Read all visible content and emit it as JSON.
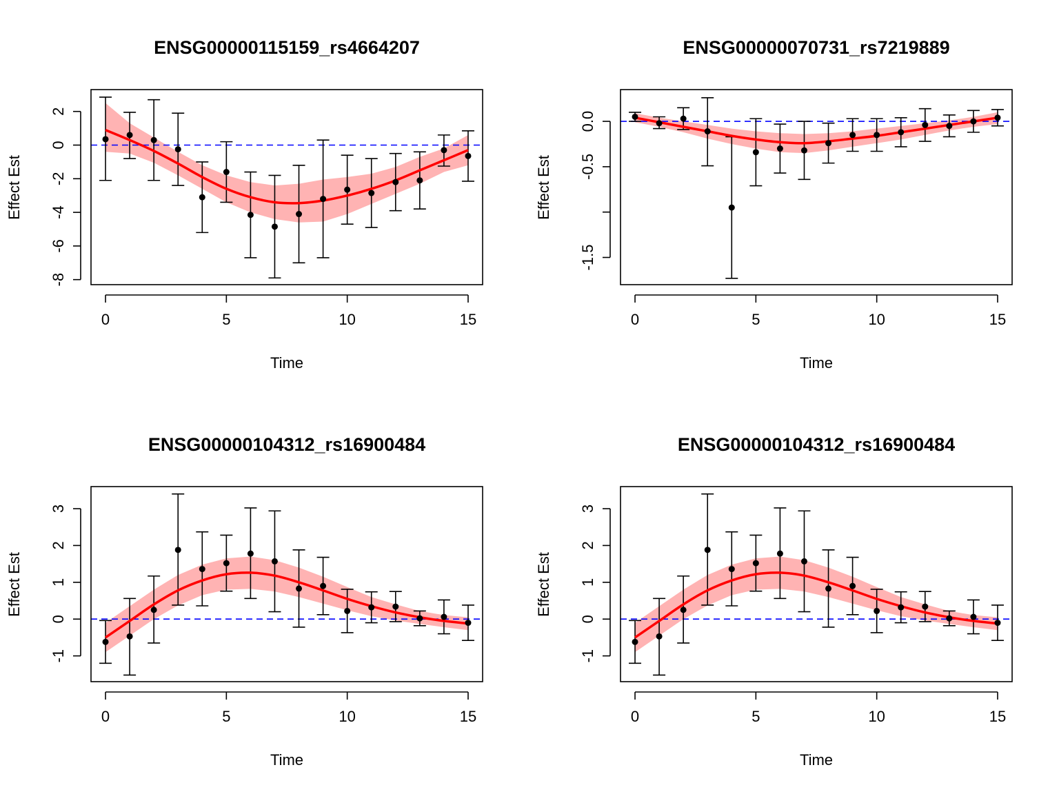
{
  "chart_data": [
    {
      "type": "scatter",
      "title": "ENSG00000115159_rs4664207",
      "xlabel": "Time",
      "ylabel": "Effect Est",
      "xlim": [
        -0.6,
        15.6
      ],
      "ylim": [
        -8.3,
        3.3
      ],
      "xticks": [
        0,
        5,
        10,
        15
      ],
      "yticks": [
        -8,
        -6,
        -4,
        -2,
        0,
        2
      ],
      "ytick_labels": [
        "-8",
        "-6",
        "-4",
        "-2",
        "0",
        "2"
      ],
      "reference_line": 0,
      "points": {
        "x": [
          0,
          1,
          2,
          3,
          4,
          5,
          6,
          7,
          8,
          9,
          10,
          11,
          12,
          13,
          14,
          15
        ],
        "y": [
          0.35,
          0.6,
          0.3,
          -0.25,
          -3.1,
          -1.6,
          -4.15,
          -4.85,
          -4.1,
          -3.2,
          -2.65,
          -2.85,
          -2.2,
          -2.1,
          -0.3,
          -0.65
        ],
        "lower": [
          -2.1,
          -0.8,
          -2.1,
          -2.4,
          -5.2,
          -3.4,
          -6.7,
          -7.9,
          -7.0,
          -6.7,
          -4.7,
          -4.9,
          -3.9,
          -3.8,
          -1.25,
          -2.15
        ],
        "upper": [
          2.85,
          1.95,
          2.7,
          1.9,
          -1.0,
          0.2,
          -1.6,
          -1.8,
          -1.2,
          0.3,
          -0.6,
          -0.8,
          -0.5,
          -0.4,
          0.6,
          0.85
        ]
      },
      "fit": {
        "x": [
          0,
          1,
          2,
          3,
          4,
          5,
          6,
          7,
          8,
          9,
          10,
          11,
          12,
          13,
          14,
          15
        ],
        "y": [
          0.9,
          0.3,
          -0.35,
          -1.1,
          -1.9,
          -2.6,
          -3.1,
          -3.4,
          -3.45,
          -3.3,
          -3.0,
          -2.6,
          -2.1,
          -1.5,
          -0.9,
          -0.3
        ],
        "lower": [
          -0.4,
          -0.5,
          -1.05,
          -1.8,
          -2.6,
          -3.4,
          -4.0,
          -4.4,
          -4.6,
          -4.55,
          -4.1,
          -3.5,
          -2.9,
          -2.3,
          -1.6,
          -1.2
        ],
        "upper": [
          2.5,
          1.3,
          0.45,
          -0.4,
          -1.2,
          -1.8,
          -2.2,
          -2.4,
          -2.3,
          -2.05,
          -1.9,
          -1.7,
          -1.3,
          -0.7,
          -0.2,
          0.6
        ]
      }
    },
    {
      "type": "scatter",
      "title": "ENSG00000070731_rs7219889",
      "xlabel": "Time",
      "ylabel": "Effect Est",
      "xlim": [
        -0.6,
        15.6
      ],
      "ylim": [
        -1.8,
        0.35
      ],
      "xticks": [
        0,
        5,
        10,
        15
      ],
      "yticks": [
        -1.5,
        -1.0,
        -0.5,
        0.0
      ],
      "ytick_labels": [
        "-1.5",
        "",
        "-0.5",
        "0.0"
      ],
      "reference_line": 0,
      "points": {
        "x": [
          0,
          1,
          2,
          3,
          4,
          5,
          6,
          7,
          8,
          9,
          10,
          11,
          12,
          13,
          14,
          15
        ],
        "y": [
          0.05,
          -0.02,
          0.03,
          -0.11,
          -0.95,
          -0.34,
          -0.3,
          -0.32,
          -0.24,
          -0.15,
          -0.15,
          -0.12,
          -0.04,
          -0.05,
          0.0,
          0.04
        ],
        "lower": [
          0.0,
          -0.08,
          -0.09,
          -0.49,
          -1.73,
          -0.71,
          -0.57,
          -0.64,
          -0.46,
          -0.33,
          -0.33,
          -0.28,
          -0.22,
          -0.17,
          -0.12,
          -0.05
        ],
        "upper": [
          0.1,
          0.05,
          0.15,
          0.26,
          -0.17,
          0.03,
          -0.03,
          0.0,
          -0.02,
          0.03,
          0.03,
          0.04,
          0.14,
          0.07,
          0.12,
          0.13
        ]
      },
      "fit": {
        "x": [
          0,
          1,
          2,
          3,
          4,
          5,
          6,
          7,
          8,
          9,
          10,
          11,
          12,
          13,
          14,
          15
        ],
        "y": [
          0.04,
          -0.01,
          -0.06,
          -0.11,
          -0.16,
          -0.2,
          -0.23,
          -0.24,
          -0.22,
          -0.19,
          -0.16,
          -0.12,
          -0.08,
          -0.04,
          0.0,
          0.04
        ],
        "lower": [
          -0.01,
          -0.06,
          -0.12,
          -0.19,
          -0.25,
          -0.3,
          -0.34,
          -0.35,
          -0.32,
          -0.28,
          -0.24,
          -0.2,
          -0.15,
          -0.1,
          -0.06,
          -0.03
        ],
        "upper": [
          0.09,
          0.04,
          0.0,
          -0.04,
          -0.08,
          -0.11,
          -0.13,
          -0.14,
          -0.13,
          -0.11,
          -0.08,
          -0.05,
          -0.02,
          0.01,
          0.05,
          0.1
        ]
      }
    },
    {
      "type": "scatter",
      "title": "ENSG00000104312_rs16900484",
      "xlabel": "Time",
      "ylabel": "Effect Est",
      "xlim": [
        -0.6,
        15.6
      ],
      "ylim": [
        -1.7,
        3.6
      ],
      "xticks": [
        0,
        5,
        10,
        15
      ],
      "yticks": [
        -1,
        0,
        1,
        2,
        3
      ],
      "ytick_labels": [
        "-1",
        "0",
        "1",
        "2",
        "3"
      ],
      "reference_line": 0,
      "points": {
        "x": [
          0,
          1,
          2,
          3,
          4,
          5,
          6,
          7,
          8,
          9,
          10,
          11,
          12,
          13,
          14,
          15
        ],
        "y": [
          -0.62,
          -0.47,
          0.25,
          1.88,
          1.36,
          1.52,
          1.78,
          1.57,
          0.83,
          0.9,
          0.22,
          0.32,
          0.34,
          0.02,
          0.06,
          -0.1
        ],
        "lower": [
          -1.2,
          -1.52,
          -0.65,
          0.38,
          0.36,
          0.76,
          0.56,
          0.2,
          -0.22,
          0.12,
          -0.37,
          -0.1,
          -0.07,
          -0.18,
          -0.4,
          -0.58
        ],
        "upper": [
          -0.04,
          0.56,
          1.17,
          3.4,
          2.37,
          2.28,
          3.02,
          2.94,
          1.88,
          1.68,
          0.81,
          0.74,
          0.75,
          0.22,
          0.52,
          0.38
        ]
      },
      "fit": {
        "x": [
          0,
          1,
          2,
          3,
          4,
          5,
          6,
          7,
          8,
          9,
          10,
          11,
          12,
          13,
          14,
          15
        ],
        "y": [
          -0.5,
          -0.05,
          0.4,
          0.78,
          1.05,
          1.22,
          1.26,
          1.18,
          1.0,
          0.78,
          0.55,
          0.35,
          0.18,
          0.05,
          -0.05,
          -0.12
        ],
        "lower": [
          -0.9,
          -0.45,
          0.0,
          0.37,
          0.65,
          0.8,
          0.82,
          0.75,
          0.6,
          0.42,
          0.24,
          0.08,
          -0.04,
          -0.13,
          -0.22,
          -0.3
        ],
        "upper": [
          -0.1,
          0.35,
          0.8,
          1.2,
          1.48,
          1.65,
          1.7,
          1.6,
          1.4,
          1.15,
          0.87,
          0.6,
          0.4,
          0.22,
          0.11,
          0.05
        ]
      }
    },
    {
      "type": "scatter",
      "title": "ENSG00000104312_rs16900484",
      "xlabel": "Time",
      "ylabel": "Effect Est",
      "xlim": [
        -0.6,
        15.6
      ],
      "ylim": [
        -1.7,
        3.6
      ],
      "xticks": [
        0,
        5,
        10,
        15
      ],
      "yticks": [
        -1,
        0,
        1,
        2,
        3
      ],
      "ytick_labels": [
        "-1",
        "0",
        "1",
        "2",
        "3"
      ],
      "reference_line": 0,
      "points": {
        "x": [
          0,
          1,
          2,
          3,
          4,
          5,
          6,
          7,
          8,
          9,
          10,
          11,
          12,
          13,
          14,
          15
        ],
        "y": [
          -0.62,
          -0.47,
          0.25,
          1.88,
          1.36,
          1.52,
          1.78,
          1.57,
          0.83,
          0.9,
          0.22,
          0.32,
          0.34,
          0.02,
          0.06,
          -0.1
        ],
        "lower": [
          -1.2,
          -1.52,
          -0.65,
          0.38,
          0.36,
          0.76,
          0.56,
          0.2,
          -0.22,
          0.12,
          -0.37,
          -0.1,
          -0.07,
          -0.18,
          -0.4,
          -0.58
        ],
        "upper": [
          -0.04,
          0.56,
          1.17,
          3.4,
          2.37,
          2.28,
          3.02,
          2.94,
          1.88,
          1.68,
          0.81,
          0.74,
          0.75,
          0.22,
          0.52,
          0.38
        ]
      },
      "fit": {
        "x": [
          0,
          1,
          2,
          3,
          4,
          5,
          6,
          7,
          8,
          9,
          10,
          11,
          12,
          13,
          14,
          15
        ],
        "y": [
          -0.5,
          -0.05,
          0.4,
          0.78,
          1.05,
          1.22,
          1.26,
          1.18,
          1.0,
          0.78,
          0.55,
          0.35,
          0.18,
          0.05,
          -0.05,
          -0.12
        ],
        "lower": [
          -0.9,
          -0.45,
          0.0,
          0.37,
          0.65,
          0.8,
          0.82,
          0.75,
          0.6,
          0.42,
          0.24,
          0.08,
          -0.04,
          -0.13,
          -0.22,
          -0.3
        ],
        "upper": [
          -0.1,
          0.35,
          0.8,
          1.2,
          1.48,
          1.65,
          1.7,
          1.6,
          1.4,
          1.15,
          0.87,
          0.6,
          0.4,
          0.22,
          0.11,
          0.05
        ]
      }
    }
  ],
  "colors": {
    "fit_line": "#ff0000",
    "band": "#ffb3b3",
    "reference_line": "#0000ff",
    "points": "#000000"
  }
}
